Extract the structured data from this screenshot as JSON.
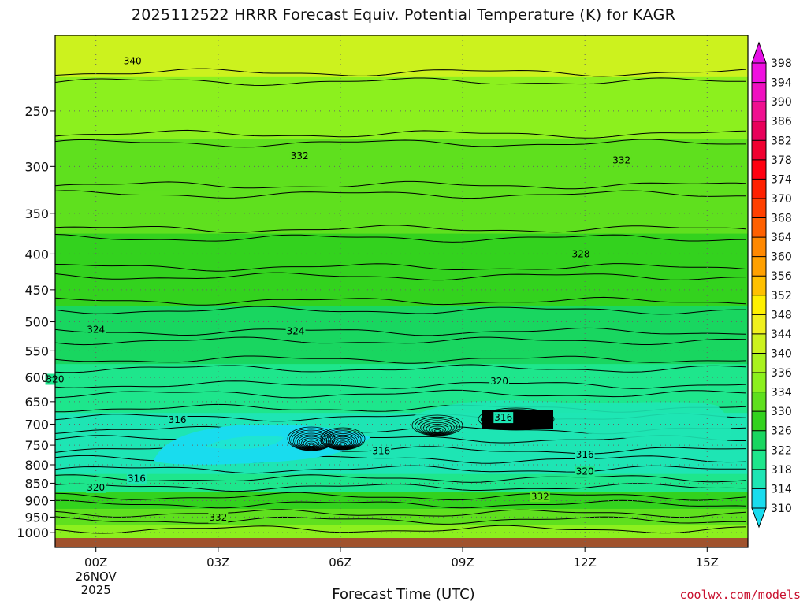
{
  "title": "2025112522 HRRR Forecast Equiv. Potential Temperature (K) for KAGR",
  "watermark": "coolwx.com/models",
  "chart_data": {
    "type": "heatmap",
    "variable": "Equivalent Potential Temperature (K)",
    "xlabel": "Forecast Time (UTC)",
    "xlim": [
      -1,
      16
    ],
    "x_ticks": [
      {
        "hour": 0,
        "label": "00Z",
        "sub": [
          "26NOV",
          "2025"
        ]
      },
      {
        "hour": 3,
        "label": "03Z"
      },
      {
        "hour": 6,
        "label": "06Z"
      },
      {
        "hour": 9,
        "label": "09Z"
      },
      {
        "hour": 12,
        "label": "12Z"
      },
      {
        "hour": 15,
        "label": "15Z"
      }
    ],
    "y_scale": "log-pressure",
    "ylim": [
      1050,
      195
    ],
    "y_ticks": [
      250,
      300,
      350,
      400,
      450,
      500,
      550,
      600,
      650,
      700,
      750,
      800,
      850,
      900,
      950,
      1000
    ],
    "colorbar": {
      "levels": [
        310,
        314,
        318,
        322,
        326,
        330,
        334,
        336,
        340,
        344,
        348,
        352,
        356,
        360,
        364,
        368,
        370,
        374,
        378,
        382,
        386,
        390,
        394,
        398
      ],
      "colors": [
        "#19dcee",
        "#1ee5b4",
        "#1ee68c",
        "#19d660",
        "#33d21e",
        "#5fe01e",
        "#8cf01e",
        "#a9f21e",
        "#ccf21e",
        "#f0f01e",
        "#fff000",
        "#ffc000",
        "#ffa000",
        "#ff8800",
        "#ff6000",
        "#ff4000",
        "#ff2000",
        "#ff0010",
        "#f00030",
        "#e8005a",
        "#f01090",
        "#f010c0",
        "#f010e0",
        "#e610e6"
      ]
    },
    "profiles": [
      {
        "level": 200,
        "theta_e": 342
      },
      {
        "level": 250,
        "theta_e": 334
      },
      {
        "level": 300,
        "theta_e": 331
      },
      {
        "level": 350,
        "theta_e": 330
      },
      {
        "level": 400,
        "theta_e": 328
      },
      {
        "level": 450,
        "theta_e": 326
      },
      {
        "level": 500,
        "theta_e": 324
      },
      {
        "level": 550,
        "theta_e": 322
      },
      {
        "level": 600,
        "theta_e": 320
      },
      {
        "level": 650,
        "theta_e": 318
      },
      {
        "level": 700,
        "theta_e": 316
      },
      {
        "level": 750,
        "theta_e": 314
      },
      {
        "level": 800,
        "theta_e": 317
      },
      {
        "level": 850,
        "theta_e": 320
      },
      {
        "level": 900,
        "theta_e": 326
      },
      {
        "level": 950,
        "theta_e": 332
      },
      {
        "level": 1000,
        "theta_e": 334
      }
    ],
    "contour_labels": [
      {
        "text": "340",
        "hour": 0.9,
        "level": 212
      },
      {
        "text": "332",
        "hour": 5.0,
        "level": 290
      },
      {
        "text": "332",
        "hour": 12.9,
        "level": 294
      },
      {
        "text": "328",
        "hour": 11.9,
        "level": 400
      },
      {
        "text": "324",
        "hour": 0.0,
        "level": 513
      },
      {
        "text": "324",
        "hour": 4.9,
        "level": 516
      },
      {
        "text": "320",
        "hour": -1.0,
        "level": 604
      },
      {
        "text": "320",
        "hour": 9.9,
        "level": 608
      },
      {
        "text": "316",
        "hour": 2.0,
        "level": 690
      },
      {
        "text": "316",
        "hour": 10.0,
        "level": 685
      },
      {
        "text": "316",
        "hour": 7.0,
        "level": 765
      },
      {
        "text": "316",
        "hour": 12.0,
        "level": 773
      },
      {
        "text": "316",
        "hour": 1.0,
        "level": 837
      },
      {
        "text": "320",
        "hour": 0.0,
        "level": 862
      },
      {
        "text": "320",
        "hour": 12.0,
        "level": 818
      },
      {
        "text": "332",
        "hour": 10.9,
        "level": 888
      },
      {
        "text": "332",
        "hour": 3.0,
        "level": 952
      }
    ]
  }
}
